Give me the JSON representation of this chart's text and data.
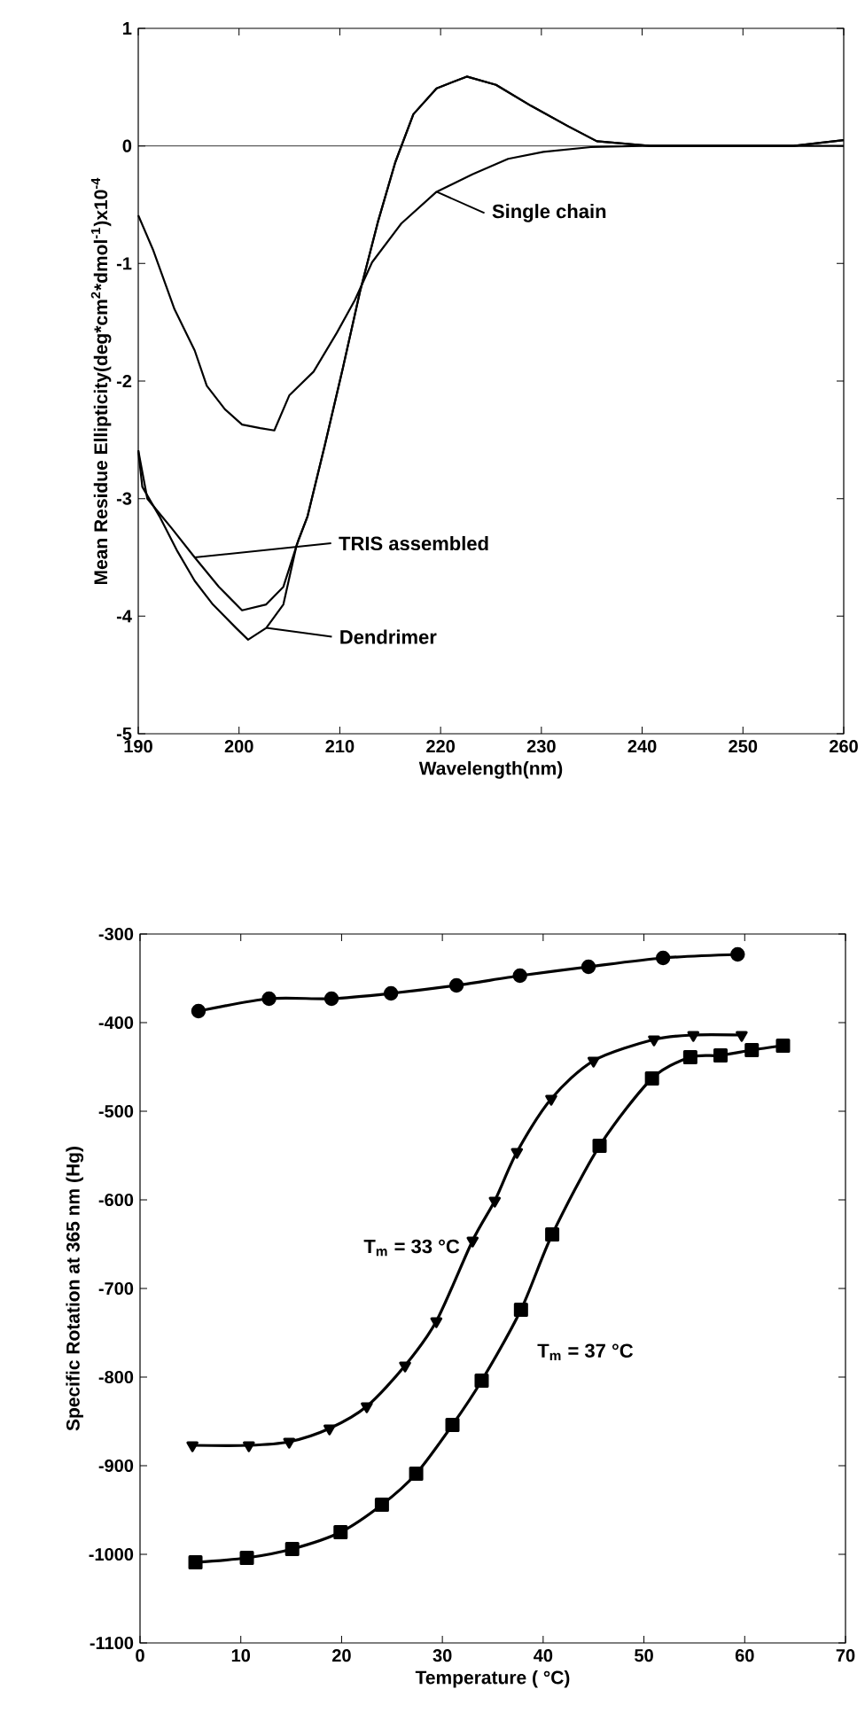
{
  "chart_data": [
    {
      "type": "line",
      "xlabel": "Wavelength(nm)",
      "ylabel": "Mean Residue Ellipticity(deg*cm$^{2}$*dmol$^{-1}$)x10$^{-4}$",
      "xlim": [
        190,
        260
      ],
      "ylim": [
        -5,
        1
      ],
      "xticks": [
        190,
        200,
        210,
        220,
        230,
        240,
        250,
        260
      ],
      "yticks": [
        -5,
        -4,
        -3,
        -2,
        -1,
        0,
        1
      ],
      "marker": "none",
      "legend": "center",
      "ref_lines": [
        {
          "axis": "y",
          "value": 0
        }
      ],
      "series": [
        {
          "name": "Single chain",
          "color": "#000000",
          "x": [
            190,
            191.5,
            193.6,
            195.6,
            196.8,
            198.6,
            200.3,
            202.1,
            203.5,
            205.0,
            207.4,
            209.7,
            211.5,
            213.2,
            216.1,
            219.6,
            223.2,
            226.7,
            230.2,
            234.9,
            240,
            250,
            260
          ],
          "values": [
            -0.59,
            -0.89,
            -1.39,
            -1.74,
            -2.04,
            -2.24,
            -2.37,
            -2.4,
            -2.42,
            -2.12,
            -1.92,
            -1.59,
            -1.31,
            -0.99,
            -0.66,
            -0.39,
            -0.24,
            -0.11,
            -0.05,
            -0.01,
            0,
            0,
            0
          ]
        },
        {
          "name": "TRIS assembled",
          "color": "#000000",
          "x": [
            190,
            190.9,
            193.3,
            195.6,
            198,
            200.3,
            202.7,
            204.4,
            205.9,
            206.8,
            208.5,
            210.3,
            212,
            213.8,
            215.5,
            217.3,
            219.6,
            222.6,
            225.5,
            229,
            232.6,
            235.5,
            240.8,
            245,
            250,
            255,
            260
          ],
          "values": [
            -2.59,
            -3.0,
            -3.25,
            -3.5,
            -3.75,
            -3.95,
            -3.9,
            -3.75,
            -3.35,
            -3.15,
            -2.55,
            -1.89,
            -1.24,
            -0.64,
            -0.14,
            0.27,
            0.49,
            0.59,
            0.52,
            0.34,
            0.17,
            0.04,
            0,
            0,
            0,
            0,
            0.05
          ]
        },
        {
          "name": "Dendrimer",
          "color": "#000000",
          "x": [
            190,
            190.4,
            192.1,
            193.9,
            195.6,
            197.4,
            199.7,
            200.9,
            202.7,
            204.4,
            205.7,
            206.8,
            208.5,
            210.3,
            212,
            213.8,
            215.5,
            217.3,
            219.6,
            222.6,
            225.5,
            229,
            232.6,
            235.5,
            240.8,
            245,
            250,
            255,
            260
          ],
          "values": [
            -2.59,
            -2.9,
            -3.15,
            -3.45,
            -3.7,
            -3.9,
            -4.1,
            -4.2,
            -4.1,
            -3.9,
            -3.4,
            -3.15,
            -2.55,
            -1.89,
            -1.24,
            -0.64,
            -0.14,
            0.27,
            0.49,
            0.59,
            0.52,
            0.34,
            0.17,
            0.04,
            0,
            0,
            0,
            0,
            0.05
          ]
        }
      ]
    },
    {
      "type": "line",
      "xlabel": "Temperature ( °C)",
      "ylabel": "Specific Rotation at 365 nm (Hg)",
      "xlim": [
        0,
        70
      ],
      "ylim": [
        -1100,
        -300
      ],
      "xticks": [
        0,
        10,
        20,
        30,
        40,
        50,
        60,
        70
      ],
      "yticks": [
        -1100,
        -1000,
        -900,
        -800,
        -700,
        -600,
        -500,
        -400,
        -300
      ],
      "annotations": [
        {
          "text": "T$_{m}$ = 33 °C",
          "x": 33,
          "y": -646
        },
        {
          "text": "T$_{m}$ = 37 °C",
          "x": 37.8,
          "y": -724
        }
      ],
      "series": [
        {
          "color": "#000000",
          "marker": "circle",
          "x": [
            5.8,
            12.8,
            19.0,
            24.9,
            31.4,
            37.7,
            44.5,
            51.9,
            59.3
          ],
          "values": [
            -387,
            -373,
            -373,
            -367,
            -358,
            -347,
            -337,
            -327,
            -323
          ]
        },
        {
          "color": "#000000",
          "marker": "triangle",
          "x": [
            5.2,
            10.8,
            14.8,
            18.8,
            22.5,
            26.3,
            29.4,
            33.0,
            35.2,
            37.4,
            40.8,
            45.0,
            51.0,
            54.9,
            59.7
          ],
          "values": [
            -877,
            -877,
            -873,
            -858,
            -833,
            -787,
            -737,
            -646,
            -601,
            -546,
            -486,
            -443,
            -419,
            -414,
            -414
          ]
        },
        {
          "color": "#000000",
          "marker": "square",
          "x": [
            5.5,
            10.6,
            15.1,
            19.9,
            24.0,
            27.4,
            31.0,
            33.9,
            37.8,
            40.9,
            45.6,
            50.8,
            54.6,
            57.6,
            60.7,
            63.8
          ],
          "values": [
            -1009,
            -1004,
            -994,
            -975,
            -944,
            -909,
            -854,
            -804,
            -724,
            -639,
            -539,
            -463,
            -439,
            -437,
            -431,
            -426
          ]
        }
      ]
    }
  ]
}
